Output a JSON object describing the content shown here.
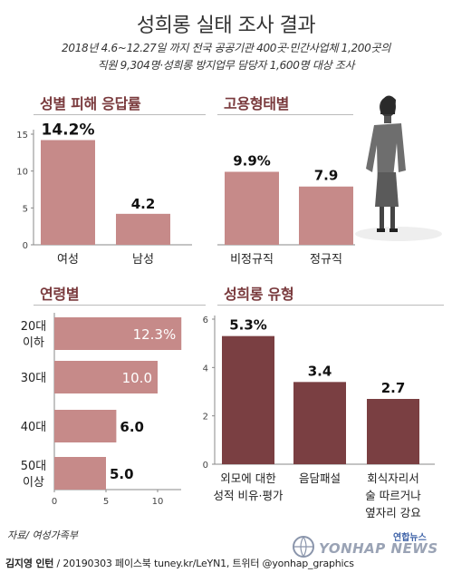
{
  "header": {
    "title": "성희롱 실태 조사 결과",
    "subtitle_line1": "2018년 4.6~12.27일 까지 전국 공공기관 400곳·민간사업체 1,200곳의",
    "subtitle_line2": "직원 9,304명·성희롱 방지업무 담당자 1,600명 대상 조사"
  },
  "source": "자료/ 여성가족부",
  "footer": {
    "author": "김지영 인턴",
    "rest": " / 20190303  페이스북 tuney.kr/LeYN1, 트위터 @yonhap_graphics"
  },
  "logo": {
    "korean": "연합뉴스",
    "english": "YONHAP NEWS"
  },
  "colors": {
    "bar_light": "#c68a89",
    "bar_dark": "#7a3f42",
    "heading": "#7a3a3d",
    "axis": "#888888"
  },
  "chart_data": [
    {
      "id": "gender",
      "type": "bar",
      "title": "성별 피해 응답률",
      "categories": [
        "여성",
        "남성"
      ],
      "values": [
        14.2,
        4.2
      ],
      "value_labels": [
        "14.2%",
        "4.2"
      ],
      "yticks": [
        "0",
        "5",
        "10",
        "15"
      ],
      "ylim": [
        0,
        16
      ]
    },
    {
      "id": "employment",
      "type": "bar",
      "title": "고용형태별",
      "categories": [
        "비정규직",
        "정규직"
      ],
      "values": [
        9.9,
        7.9
      ],
      "value_labels": [
        "9.9%",
        "7.9"
      ],
      "ylim": [
        0,
        16
      ]
    },
    {
      "id": "age",
      "type": "bar",
      "orientation": "horizontal",
      "title": "연령별",
      "categories": [
        [
          "20대",
          "이하"
        ],
        [
          "30대"
        ],
        [
          "40대"
        ],
        [
          "50대",
          "이상"
        ]
      ],
      "values": [
        12.3,
        10.0,
        6.0,
        5.0
      ],
      "value_labels": [
        "12.3%",
        "10.0",
        "6.0",
        "5.0"
      ],
      "xticks": [
        "0",
        "5",
        "10"
      ],
      "xlim": [
        0,
        13
      ]
    },
    {
      "id": "type",
      "type": "bar",
      "title": "성희롱 유형",
      "categories": [
        [
          "외모에 대한",
          "성적 비유·평가"
        ],
        [
          "음담패설"
        ],
        [
          "회식자리서",
          "술 따르거나",
          "옆자리 강요"
        ]
      ],
      "values": [
        5.3,
        3.4,
        2.7
      ],
      "value_labels": [
        "5.3%",
        "3.4",
        "2.7"
      ],
      "yticks": [
        "0",
        "2",
        "4",
        "6"
      ],
      "ylim": [
        0,
        6
      ]
    }
  ]
}
